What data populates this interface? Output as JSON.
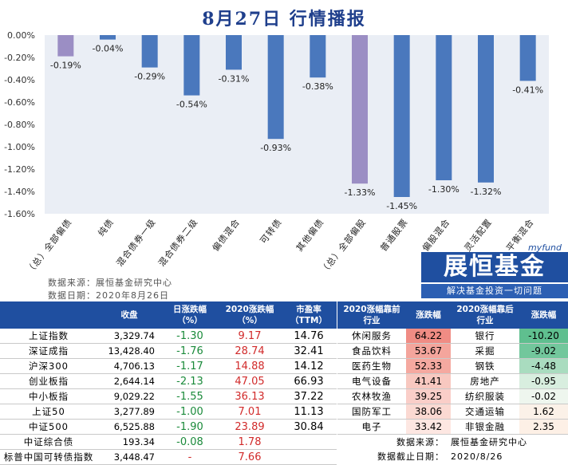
{
  "title": "8月27日  行情播报",
  "chart_data": {
    "type": "bar",
    "categories": [
      "（总）全部偏债",
      "纯债",
      "混合债券一级",
      "混合债券二级",
      "偏债混合",
      "可转债",
      "其他偏债",
      "（总）全部偏股",
      "普通股票",
      "偏股混合",
      "灵活配置",
      "平衡混合"
    ],
    "values": [
      -0.19,
      -0.04,
      -0.29,
      -0.54,
      -0.31,
      -0.93,
      -0.38,
      -1.33,
      -1.45,
      -1.3,
      -1.32,
      -0.41
    ],
    "data_labels": [
      "-0.19%",
      "-0.04%",
      "-0.29%",
      "-0.54%",
      "-0.31%",
      "-0.93%",
      "-0.38%",
      "-1.33%",
      "-1.45%",
      "-1.30%",
      "-1.32%",
      "-0.41%"
    ],
    "highlight": [
      true,
      false,
      false,
      false,
      false,
      false,
      false,
      true,
      false,
      false,
      false,
      false
    ],
    "yticks": [
      "0.00%",
      "-0.20%",
      "-0.40%",
      "-0.60%",
      "-0.80%",
      "-1.00%",
      "-1.20%",
      "-1.40%",
      "-1.60%"
    ],
    "ylim": [
      -1.6,
      0
    ],
    "colors": {
      "bar": "#4a78bd",
      "highlight": "#9b8ec4",
      "plot_bg": "#eaeef5"
    }
  },
  "source": {
    "line1": "数据来源：展恒基金研究中心",
    "line2": "数据日期：2020年8月26日"
  },
  "logo": {
    "en": "myfund",
    "brand": "展恒基金",
    "slogan": "解决基金投资一切问题"
  },
  "index_table": {
    "headers": [
      "",
      "收盘",
      "日涨跌幅\n（%）",
      "2020涨跌幅\n（%）",
      "市盈率\n（TTM）"
    ],
    "rows": [
      {
        "name": "上证指数",
        "close": "3,329.74",
        "day": "-1.30",
        "ytd": "9.17",
        "pe": "14.76"
      },
      {
        "name": "深证成指",
        "close": "13,428.40",
        "day": "-1.76",
        "ytd": "28.74",
        "pe": "32.41"
      },
      {
        "name": "沪深300",
        "close": "4,706.13",
        "day": "-1.17",
        "ytd": "14.88",
        "pe": "14.12"
      },
      {
        "name": "创业板指",
        "close": "2,644.14",
        "day": "-2.13",
        "ytd": "47.05",
        "pe": "66.93"
      },
      {
        "name": "中小板指",
        "close": "9,029.22",
        "day": "-1.55",
        "ytd": "36.13",
        "pe": "37.22"
      },
      {
        "name": "上证50",
        "close": "3,277.89",
        "day": "-1.00",
        "ytd": "7.01",
        "pe": "11.13"
      },
      {
        "name": "中证500",
        "close": "6,525.88",
        "day": "-1.90",
        "ytd": "23.89",
        "pe": "30.84"
      },
      {
        "name": "中证综合债",
        "close": "193.34",
        "day": "-0.08",
        "ytd": "1.78",
        "pe": ""
      },
      {
        "name": "标普中国可转债指数",
        "close": "3,448.47",
        "day": "-",
        "ytd": "7.66",
        "pe": ""
      }
    ]
  },
  "industry_table": {
    "headers": [
      "2020涨幅靠前\n行业",
      "涨跌幅",
      "2020涨幅靠后\n行业",
      "涨跌幅"
    ],
    "rows": [
      {
        "top": "休闲服务",
        "top_val": "64.22",
        "top_color": "#f08c84",
        "bot": "银行",
        "bot_val": "-10.20",
        "bot_color": "#5fbf8f"
      },
      {
        "top": "食品饮料",
        "top_val": "53.67",
        "top_color": "#f4a59c",
        "bot": "采掘",
        "bot_val": "-9.02",
        "bot_color": "#72c79c"
      },
      {
        "top": "医药生物",
        "top_val": "52.33",
        "top_color": "#f5a9a0",
        "bot": "钢铁",
        "bot_val": "-4.48",
        "bot_color": "#a9dcbf"
      },
      {
        "top": "电气设备",
        "top_val": "41.41",
        "top_color": "#f8c8c0",
        "bot": "房地产",
        "bot_val": "-0.95",
        "bot_color": "#d8eedf"
      },
      {
        "top": "农林牧渔",
        "top_val": "39.25",
        "top_color": "#face c8",
        "bot": "纺织服装",
        "bot_val": "-0.02",
        "bot_color": "#eef6ee"
      },
      {
        "top": "国防军工",
        "top_val": "38.06",
        "top_color": "#fbd9d2",
        "bot": "交通运输",
        "bot_val": "1.62",
        "bot_color": "#fbf1e8"
      },
      {
        "top": "电子",
        "top_val": "33.42",
        "top_color": "#fde7e2",
        "bot": "非银金融",
        "bot_val": "2.35",
        "bot_color": "#fdf0e6"
      }
    ],
    "footer": [
      {
        "label": "数据来源：",
        "value": "展恒基金研究中心"
      },
      {
        "label": "数据截止日期：",
        "value": "2020/8/26"
      }
    ]
  }
}
